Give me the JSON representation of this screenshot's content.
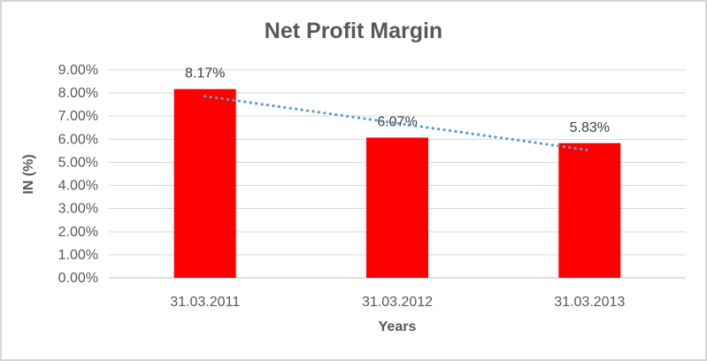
{
  "frame": {
    "background": "#ffffff",
    "border_color": "#d6d6d6"
  },
  "chart_data": {
    "type": "bar",
    "title": "Net Profit Margin",
    "xlabel": "Years",
    "ylabel": "IN (%)",
    "categories": [
      "31.03.2011",
      "31.03.2012",
      "31.03.2013"
    ],
    "values": [
      8.17,
      6.07,
      5.83
    ],
    "data_labels": [
      "8.17%",
      "6.07%",
      "5.83%"
    ],
    "y_ticks": [
      "0.00%",
      "1.00%",
      "2.00%",
      "3.00%",
      "4.00%",
      "5.00%",
      "6.00%",
      "7.00%",
      "8.00%",
      "9.00%"
    ],
    "ylim": [
      0,
      9
    ],
    "y_tick_step": 1,
    "grid": true,
    "legend": "none",
    "bar_color": "#ff0000",
    "trendline": {
      "type": "linear",
      "style": "dotted",
      "color": "#5b9bd5",
      "start_value": 7.86,
      "end_value": 5.52
    },
    "title_color": "#595959",
    "axis_label_color": "#595959",
    "data_label_color": "#404040",
    "gridline_color": "#d9d9d9",
    "axis_line_color": "#bfbfbf"
  }
}
